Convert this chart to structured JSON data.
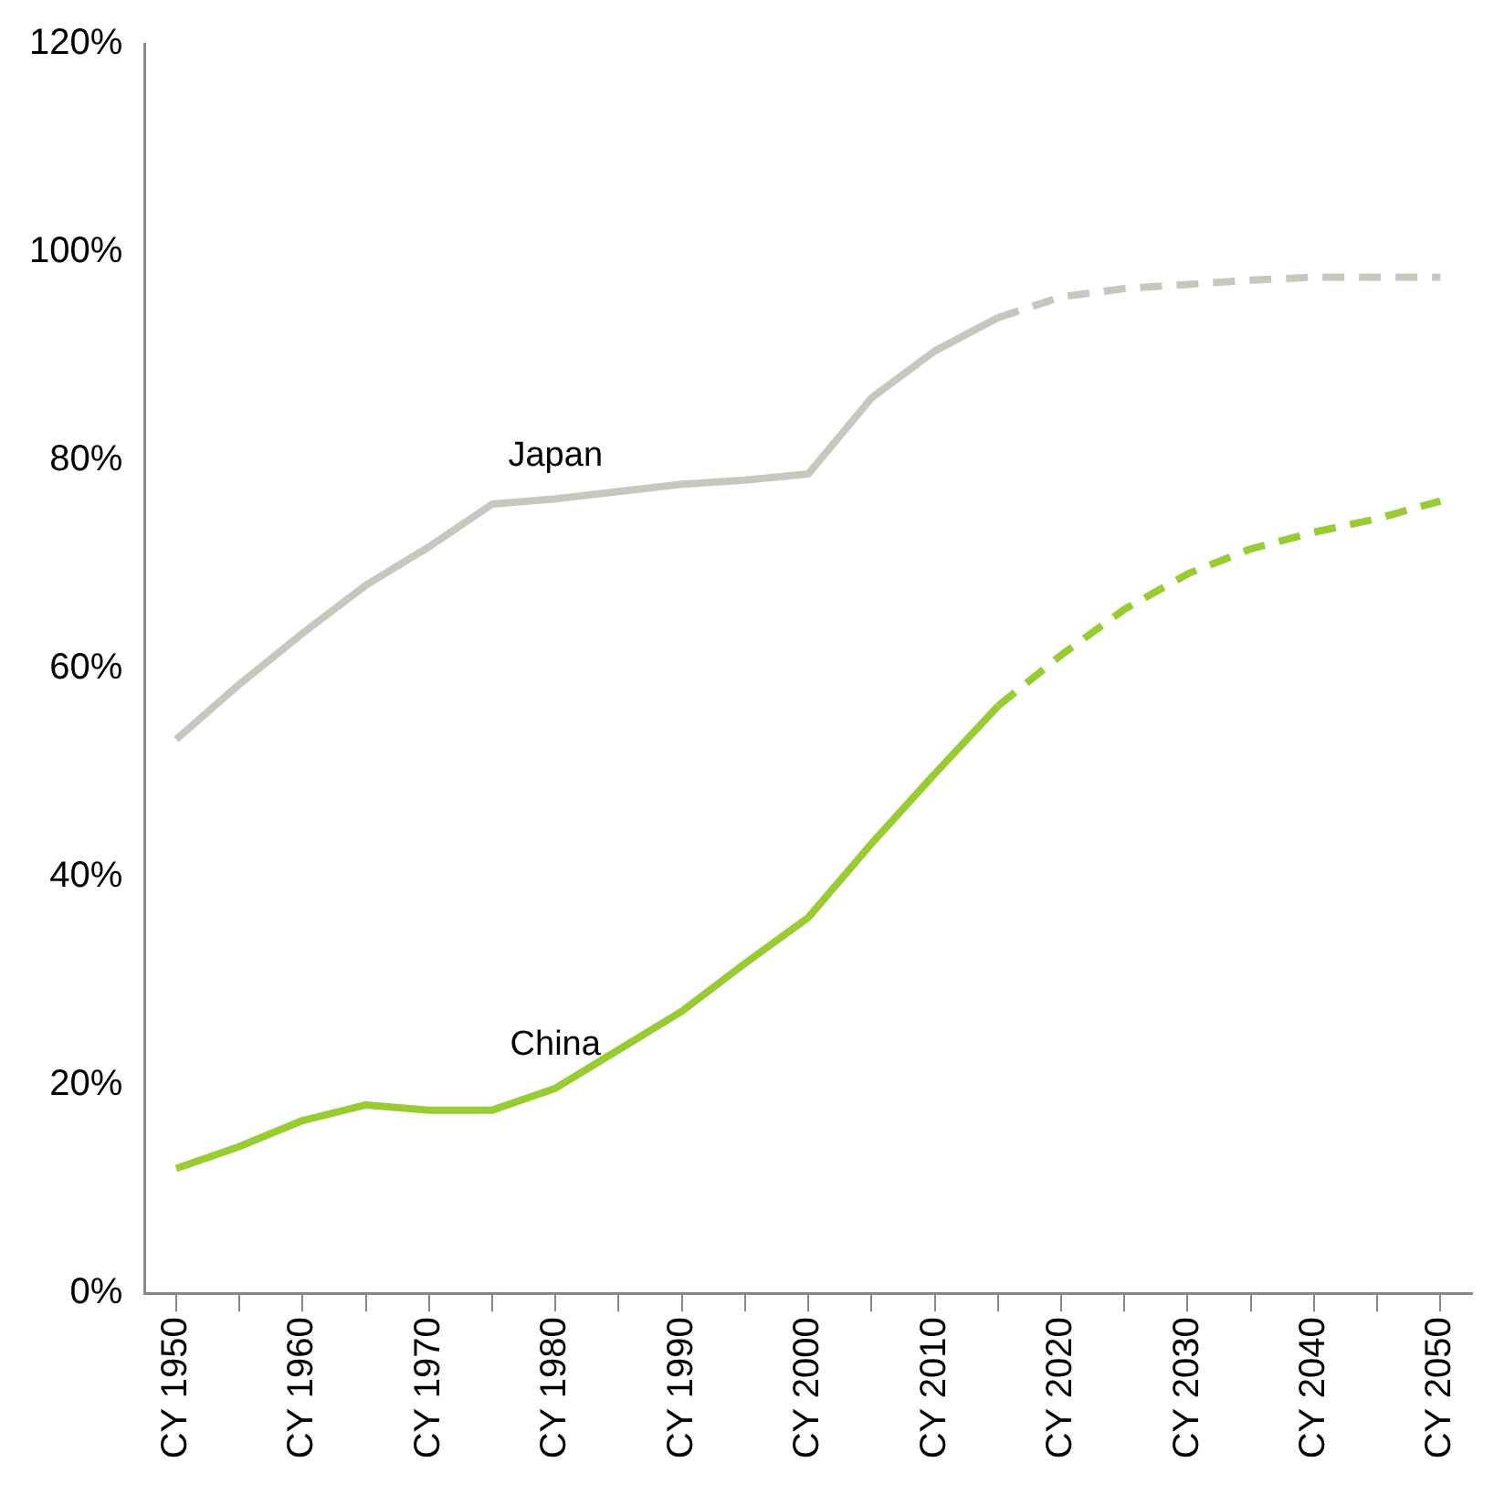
{
  "chart_data": {
    "type": "line",
    "categories": [
      "CY 1950",
      null,
      "CY 1960",
      null,
      "CY 1970",
      null,
      "CY 1980",
      null,
      "CY 1990",
      null,
      "CY 2000",
      null,
      "CY 2010",
      null,
      "CY 2020",
      null,
      "CY 2030",
      null,
      "CY 2040",
      null,
      "CY 2050"
    ],
    "series": [
      {
        "name": "Japan",
        "color": "#c8c6bd",
        "line_style": "solid",
        "values": [
          53.2,
          58.5,
          63.4,
          68,
          71.7,
          75.8,
          76.3,
          77,
          77.7,
          78.1,
          78.7,
          86,
          90.5,
          93.7,
          null,
          null,
          null,
          null,
          null,
          null,
          null
        ]
      },
      {
        "color": "#c8c6bd",
        "line_style": "dashed",
        "values": [
          null,
          null,
          null,
          null,
          null,
          null,
          null,
          null,
          null,
          null,
          null,
          null,
          null,
          93.7,
          95.7,
          96.5,
          96.9,
          97.3,
          97.6,
          97.6,
          97.6
        ]
      },
      {
        "name": "China",
        "color": "#99cc33",
        "line_style": "solid",
        "values": [
          12,
          14.1,
          16.6,
          18.1,
          17.6,
          17.6,
          19.7,
          23.4,
          27.1,
          31.7,
          36.1,
          43.2,
          49.9,
          56.4,
          null,
          null,
          null,
          null,
          null,
          null,
          null
        ]
      },
      {
        "color": "#99cc33",
        "line_style": "dashed",
        "values": [
          null,
          null,
          null,
          null,
          null,
          null,
          null,
          null,
          null,
          null,
          null,
          null,
          null,
          56.4,
          61.3,
          65.7,
          69.1,
          71.5,
          73.1,
          74.4,
          76.1
        ]
      }
    ],
    "ylim": [
      0,
      120
    ],
    "yticks": [
      {
        "value": 0,
        "label": "0%"
      },
      {
        "value": 20,
        "label": "20%"
      },
      {
        "value": 40,
        "label": "40%"
      },
      {
        "value": 60,
        "label": "60%"
      },
      {
        "value": 80,
        "label": "80%"
      },
      {
        "value": 100,
        "label": "100%"
      },
      {
        "value": 120,
        "label": "120%"
      }
    ],
    "grid": false,
    "legend": false,
    "marker": "none"
  }
}
